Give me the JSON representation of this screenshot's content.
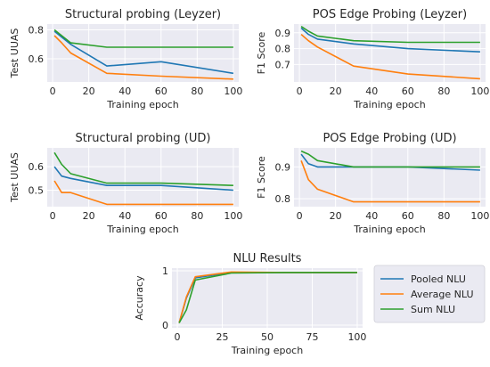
{
  "colors": {
    "pooled": "#1f77b4",
    "average": "#ff7f0e",
    "sum": "#2ca02c",
    "panel_bg": "#eaeaf2",
    "grid": "#ffffff"
  },
  "chart_data": [
    {
      "id": "c1",
      "type": "line",
      "grid": true,
      "title": "Structural probing (Leyzer)",
      "xlabel": "Training epoch",
      "ylabel": "Test UUAS",
      "xlim": [
        -3,
        103
      ],
      "ylim": [
        0.44,
        0.84
      ],
      "xticks": [
        0,
        20,
        40,
        60,
        80,
        100
      ],
      "yticks": [
        0.6,
        0.8
      ],
      "yticklabels": [
        "0.6",
        "0.8"
      ],
      "series": [
        {
          "key": "pooled",
          "x": [
            1,
            5,
            10,
            30,
            60,
            100
          ],
          "y": [
            0.79,
            0.75,
            0.7,
            0.55,
            0.58,
            0.5
          ]
        },
        {
          "key": "average",
          "x": [
            1,
            5,
            10,
            30,
            60,
            100
          ],
          "y": [
            0.76,
            0.71,
            0.64,
            0.5,
            0.48,
            0.46
          ]
        },
        {
          "key": "sum",
          "x": [
            1,
            5,
            10,
            30,
            60,
            100
          ],
          "y": [
            0.8,
            0.76,
            0.71,
            0.68,
            0.68,
            0.68
          ]
        }
      ]
    },
    {
      "id": "c2",
      "type": "line",
      "grid": true,
      "title": "POS Edge Probing (Leyzer)",
      "xlabel": "Training epoch",
      "ylabel": "F1 Score",
      "xlim": [
        -3,
        103
      ],
      "ylim": [
        0.59,
        0.955
      ],
      "xticks": [
        0,
        20,
        40,
        60,
        80,
        100
      ],
      "yticks": [
        0.7,
        0.8,
        0.9
      ],
      "yticklabels": [
        "0.7",
        "0.8",
        "0.9"
      ],
      "series": [
        {
          "key": "pooled",
          "x": [
            1,
            5,
            10,
            30,
            60,
            100
          ],
          "y": [
            0.93,
            0.89,
            0.86,
            0.83,
            0.8,
            0.78
          ]
        },
        {
          "key": "average",
          "x": [
            1,
            5,
            10,
            30,
            60,
            100
          ],
          "y": [
            0.89,
            0.85,
            0.81,
            0.69,
            0.64,
            0.61
          ]
        },
        {
          "key": "sum",
          "x": [
            1,
            5,
            10,
            30,
            60,
            100
          ],
          "y": [
            0.94,
            0.91,
            0.88,
            0.85,
            0.84,
            0.84
          ]
        }
      ]
    },
    {
      "id": "c3",
      "type": "line",
      "grid": true,
      "title": "Structural probing (UD)",
      "xlabel": "Training epoch",
      "ylabel": "Test UUAS",
      "xlim": [
        -3,
        103
      ],
      "ylim": [
        0.43,
        0.68
      ],
      "xticks": [
        0,
        20,
        40,
        60,
        80,
        100
      ],
      "yticks": [
        0.5,
        0.6
      ],
      "yticklabels": [
        "0.5",
        "0.6"
      ],
      "series": [
        {
          "key": "pooled",
          "x": [
            1,
            5,
            10,
            30,
            60,
            100
          ],
          "y": [
            0.6,
            0.56,
            0.55,
            0.52,
            0.52,
            0.5
          ]
        },
        {
          "key": "average",
          "x": [
            1,
            5,
            10,
            30,
            60,
            100
          ],
          "y": [
            0.54,
            0.49,
            0.49,
            0.44,
            0.44,
            0.44
          ]
        },
        {
          "key": "sum",
          "x": [
            1,
            5,
            10,
            30,
            60,
            100
          ],
          "y": [
            0.66,
            0.61,
            0.57,
            0.53,
            0.53,
            0.52
          ]
        }
      ]
    },
    {
      "id": "c4",
      "type": "line",
      "grid": true,
      "title": "POS Edge Probing (UD)",
      "xlabel": "Training epoch",
      "ylabel": "F1 Score",
      "xlim": [
        -3,
        103
      ],
      "ylim": [
        0.775,
        0.96
      ],
      "xticks": [
        0,
        20,
        40,
        60,
        80,
        100
      ],
      "yticks": [
        0.8,
        0.9
      ],
      "yticklabels": [
        "0.8",
        "0.9"
      ],
      "series": [
        {
          "key": "pooled",
          "x": [
            1,
            5,
            10,
            30,
            60,
            100
          ],
          "y": [
            0.94,
            0.91,
            0.9,
            0.9,
            0.9,
            0.89
          ]
        },
        {
          "key": "average",
          "x": [
            1,
            5,
            10,
            30,
            60,
            100
          ],
          "y": [
            0.92,
            0.86,
            0.83,
            0.79,
            0.79,
            0.79
          ]
        },
        {
          "key": "sum",
          "x": [
            1,
            5,
            10,
            30,
            60,
            100
          ],
          "y": [
            0.95,
            0.94,
            0.92,
            0.9,
            0.9,
            0.9
          ]
        }
      ]
    },
    {
      "id": "c5",
      "type": "line",
      "grid": true,
      "title": "NLU Results",
      "xlabel": "Training epoch",
      "ylabel": "Accuracy",
      "xlim": [
        -3,
        103
      ],
      "ylim": [
        -0.05,
        1.05
      ],
      "xticks": [
        0,
        25,
        50,
        75,
        100
      ],
      "yticks": [
        0,
        1
      ],
      "yticklabels": [
        "0",
        "1"
      ],
      "series": [
        {
          "key": "pooled",
          "x": [
            1,
            5,
            10,
            30,
            60,
            100
          ],
          "y": [
            0.04,
            0.5,
            0.87,
            0.97,
            0.97,
            0.97
          ]
        },
        {
          "key": "average",
          "x": [
            1,
            5,
            10,
            30,
            60,
            100
          ],
          "y": [
            0.04,
            0.52,
            0.89,
            0.98,
            0.97,
            0.97
          ]
        },
        {
          "key": "sum",
          "x": [
            1,
            5,
            10,
            30,
            60,
            100
          ],
          "y": [
            0.04,
            0.28,
            0.83,
            0.96,
            0.97,
            0.97
          ]
        }
      ]
    }
  ],
  "legend": {
    "placement": "right of NLU Results",
    "entries": [
      {
        "key": "pooled",
        "label": "Pooled NLU"
      },
      {
        "key": "average",
        "label": "Average NLU"
      },
      {
        "key": "sum",
        "label": "Sum NLU"
      }
    ]
  }
}
